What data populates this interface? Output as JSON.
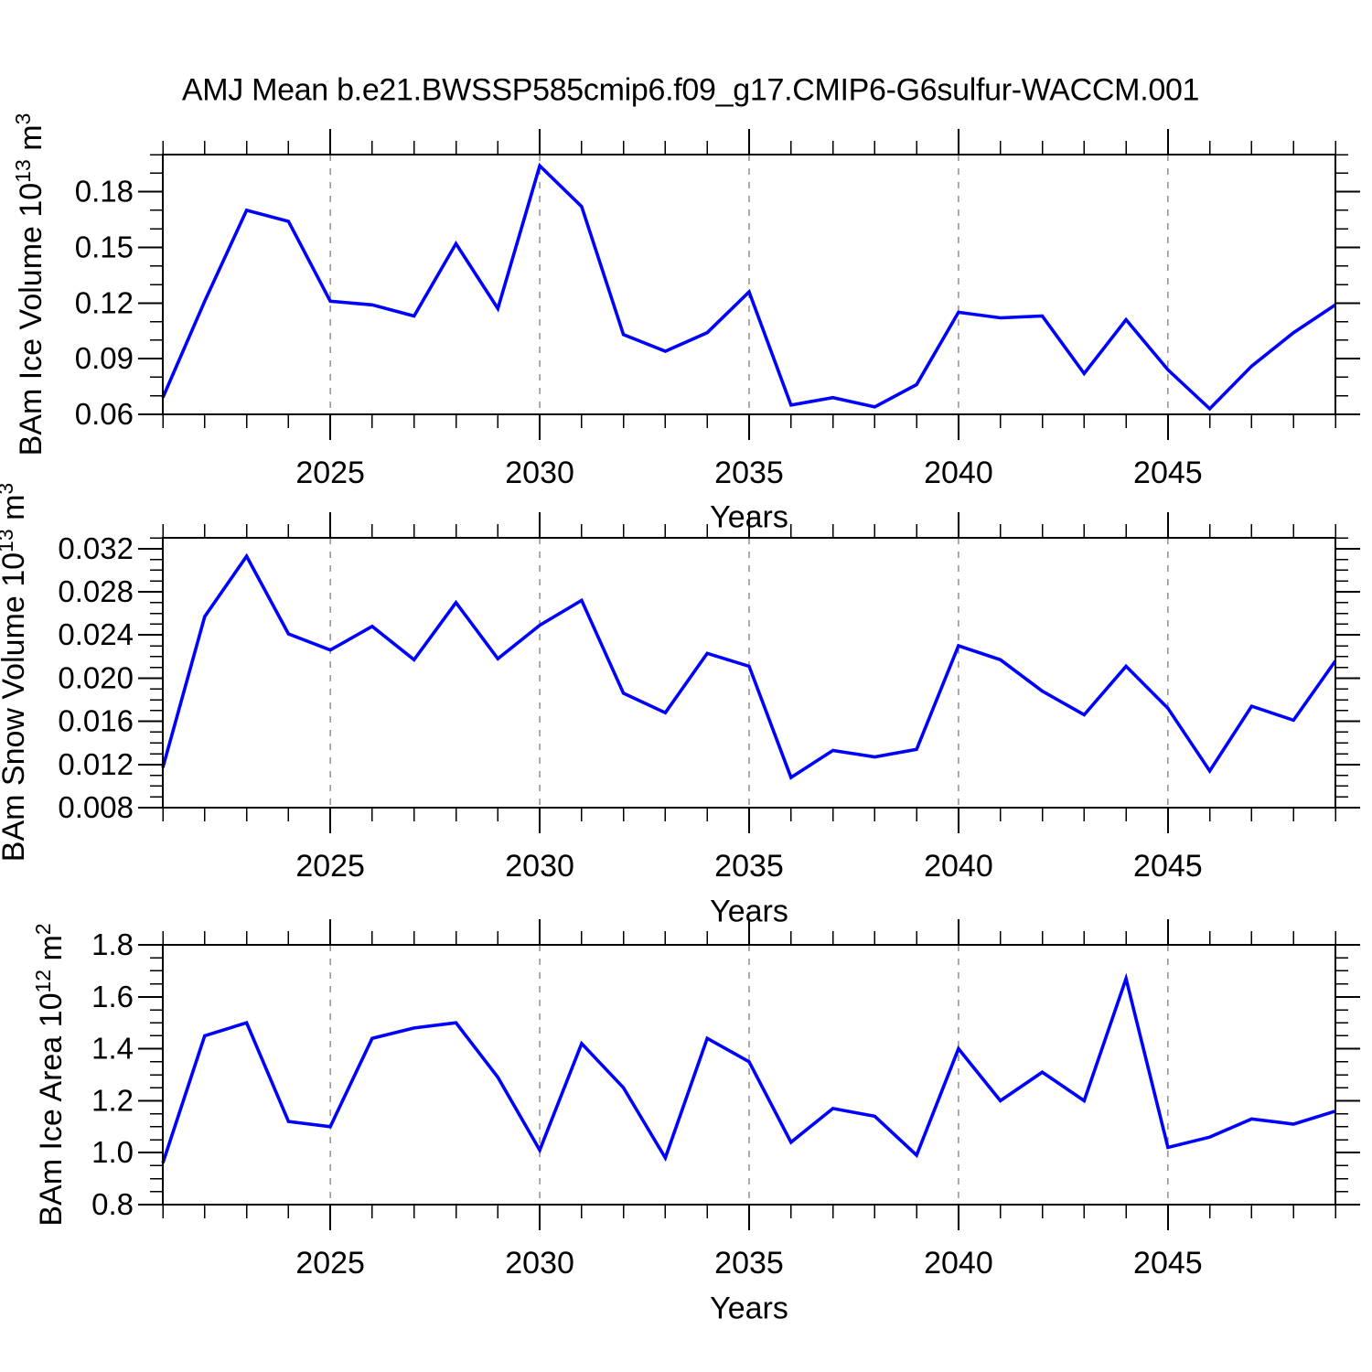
{
  "title": "AMJ Mean b.e21.BWSSP585cmip6.f09_g17.CMIP6-G6sulfur-WACCM.001",
  "style": {
    "line_color": "#0000ff",
    "axis_color": "#000000",
    "grid_color": "#7f7f7f",
    "background": "#ffffff"
  },
  "x_axis": {
    "label": "Years",
    "start": 2021,
    "end": 2049,
    "major_ticks": [
      2025,
      2030,
      2035,
      2040,
      2045
    ],
    "minor_step": 1,
    "years": [
      2021,
      2022,
      2023,
      2024,
      2025,
      2026,
      2027,
      2028,
      2029,
      2030,
      2031,
      2032,
      2033,
      2034,
      2035,
      2036,
      2037,
      2038,
      2039,
      2040,
      2041,
      2042,
      2043,
      2044,
      2045,
      2046,
      2047,
      2048,
      2049
    ]
  },
  "chart_data": [
    {
      "type": "line",
      "name": "bam-ice-volume",
      "ylabel": {
        "base": "BAm Ice Volume 10",
        "exp": "13",
        "unit": " m",
        "unit_exp": "3"
      },
      "ylim": [
        0.06,
        0.2
      ],
      "ymajor_start": 0.06,
      "ymajor_step": 0.03,
      "yminor_step": 0.01,
      "ydecimals": 2,
      "ytick_labels": [
        "0.06",
        "0.09",
        "0.12",
        "0.15",
        "0.18"
      ],
      "values": [
        0.069,
        0.121,
        0.17,
        0.164,
        0.121,
        0.119,
        0.113,
        0.152,
        0.117,
        0.194,
        0.172,
        0.103,
        0.094,
        0.104,
        0.126,
        0.065,
        0.069,
        0.064,
        0.076,
        0.115,
        0.112,
        0.113,
        0.082,
        0.111,
        0.084,
        0.063,
        0.086,
        0.104,
        0.119
      ]
    },
    {
      "type": "line",
      "name": "bam-snow-volume",
      "ylabel": {
        "base": "BAm Snow Volume 10",
        "exp": "13",
        "unit": " m",
        "unit_exp": "3"
      },
      "ylim": [
        0.008,
        0.033
      ],
      "ymajor_start": 0.008,
      "ymajor_step": 0.004,
      "yminor_step": 0.001,
      "ydecimals": 3,
      "ytick_labels": [
        "0.008",
        "0.012",
        "0.016",
        "0.020",
        "0.024",
        "0.028",
        "0.032"
      ],
      "values": [
        0.0117,
        0.0257,
        0.0313,
        0.0241,
        0.0226,
        0.0248,
        0.0217,
        0.027,
        0.0218,
        0.0249,
        0.0272,
        0.0186,
        0.0168,
        0.0223,
        0.0211,
        0.0108,
        0.0133,
        0.0127,
        0.0134,
        0.023,
        0.0217,
        0.0188,
        0.0166,
        0.0211,
        0.0172,
        0.0114,
        0.0174,
        0.0161,
        0.0216
      ]
    },
    {
      "type": "line",
      "name": "bam-ice-area",
      "ylabel": {
        "base": "BAm Ice Area 10",
        "exp": "12",
        "unit": " m",
        "unit_exp": "2"
      },
      "ylim": [
        0.8,
        1.8
      ],
      "ymajor_start": 0.8,
      "ymajor_step": 0.2,
      "yminor_step": 0.05,
      "ydecimals": 1,
      "ytick_labels": [
        "0.8",
        "1.0",
        "1.2",
        "1.4",
        "1.6",
        "1.8"
      ],
      "values": [
        0.96,
        1.45,
        1.5,
        1.12,
        1.1,
        1.44,
        1.48,
        1.5,
        1.29,
        1.01,
        1.42,
        1.25,
        0.98,
        1.44,
        1.35,
        1.04,
        1.17,
        1.14,
        0.99,
        1.4,
        1.2,
        1.31,
        1.2,
        1.67,
        1.02,
        1.06,
        1.13,
        1.11,
        1.16
      ]
    }
  ]
}
